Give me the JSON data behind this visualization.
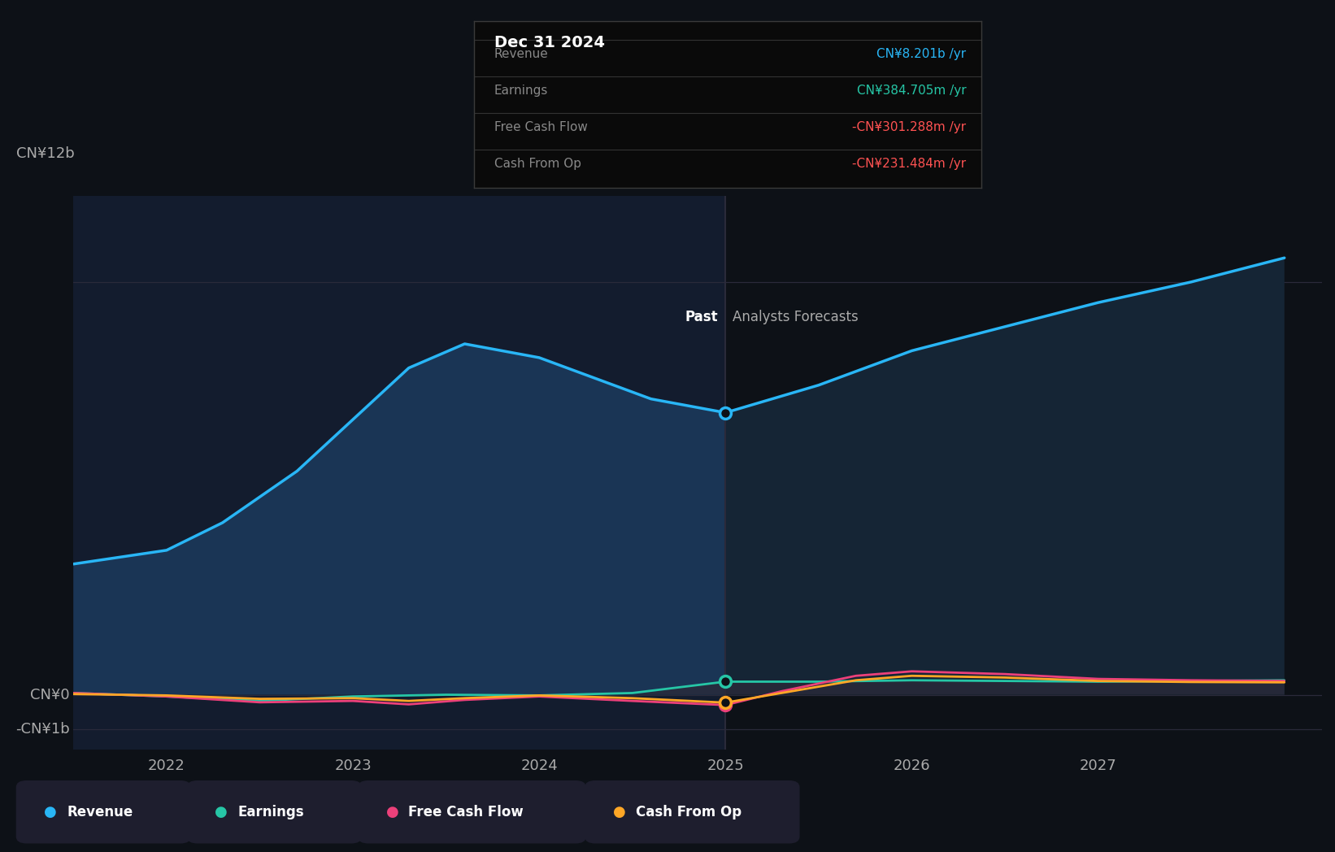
{
  "bg_color": "#0d1117",
  "past_bg_color": "#131c2e",
  "grid_color": "#252535",
  "text_color": "#aaaaaa",
  "title_color": "#ffffff",
  "divider_x": 2025.0,
  "x_min": 2021.5,
  "x_max": 2028.2,
  "y_min": -1600000000.0,
  "y_max": 14500000000.0,
  "ytick_positions": [
    -1000000000.0,
    0,
    12000000000.0
  ],
  "ytick_labels": [
    "-CN¥1b",
    "CN¥0",
    "CN¥12b"
  ],
  "xtick_positions": [
    2022,
    2023,
    2024,
    2025,
    2026,
    2027
  ],
  "revenue_color": "#29b6f6",
  "earnings_color": "#26c6a6",
  "fcf_color": "#ec407a",
  "cashop_color": "#ffa726",
  "revenue_x": [
    2021.5,
    2022.0,
    2022.3,
    2022.7,
    2023.0,
    2023.3,
    2023.6,
    2024.0,
    2024.3,
    2024.6,
    2025.0,
    2025.5,
    2026.0,
    2026.5,
    2027.0,
    2027.5,
    2028.0
  ],
  "revenue_y": [
    3800000000.0,
    4200000000.0,
    5000000000.0,
    6500000000.0,
    8000000000.0,
    9500000000.0,
    10200000000.0,
    9800000000.0,
    9200000000.0,
    8600000000.0,
    8200000000.0,
    9000000000.0,
    10000000000.0,
    10700000000.0,
    11400000000.0,
    12000000000.0,
    12700000000.0
  ],
  "earnings_x": [
    2021.5,
    2022.0,
    2022.5,
    2023.0,
    2023.5,
    2024.0,
    2024.5,
    2025.0,
    2025.5,
    2026.0,
    2026.5,
    2027.0,
    2027.5,
    2028.0
  ],
  "earnings_y": [
    50000000.0,
    -50000000.0,
    -180000000.0,
    -50000000.0,
    0.0,
    -20000000.0,
    50000000.0,
    380000000.0,
    380000000.0,
    420000000.0,
    400000000.0,
    380000000.0,
    400000000.0,
    420000000.0
  ],
  "fcf_x": [
    2021.5,
    2022.0,
    2022.5,
    2023.0,
    2023.3,
    2023.6,
    2024.0,
    2024.5,
    2025.0,
    2025.3,
    2025.7,
    2026.0,
    2026.5,
    2027.0,
    2027.5,
    2028.0
  ],
  "fcf_y": [
    50000000.0,
    -50000000.0,
    -220000000.0,
    -180000000.0,
    -280000000.0,
    -150000000.0,
    -50000000.0,
    -180000000.0,
    -300000000.0,
    100000000.0,
    550000000.0,
    680000000.0,
    600000000.0,
    460000000.0,
    420000000.0,
    400000000.0
  ],
  "cashop_x": [
    2021.5,
    2022.0,
    2022.5,
    2023.0,
    2023.3,
    2023.6,
    2024.0,
    2024.5,
    2025.0,
    2025.3,
    2025.7,
    2026.0,
    2026.5,
    2027.0,
    2027.5,
    2028.0
  ],
  "cashop_y": [
    20000000.0,
    -20000000.0,
    -120000000.0,
    -100000000.0,
    -180000000.0,
    -100000000.0,
    -20000000.0,
    -100000000.0,
    -230000000.0,
    50000000.0,
    420000000.0,
    550000000.0,
    500000000.0,
    400000000.0,
    370000000.0,
    360000000.0
  ],
  "tooltip_rows": [
    {
      "label": "Revenue",
      "value": "CN¥8.201b /yr",
      "color": "#29b6f6"
    },
    {
      "label": "Earnings",
      "value": "CN¥384.705m /yr",
      "color": "#26c6a6"
    },
    {
      "label": "Free Cash Flow",
      "value": "-CN¥301.288m /yr",
      "color": "#ff5252"
    },
    {
      "label": "Cash From Op",
      "value": "-CN¥231.484m /yr",
      "color": "#ff5252"
    }
  ],
  "legend_items": [
    {
      "label": "Revenue",
      "color": "#29b6f6"
    },
    {
      "label": "Earnings",
      "color": "#26c6a6"
    },
    {
      "label": "Free Cash Flow",
      "color": "#ec407a"
    },
    {
      "label": "Cash From Op",
      "color": "#ffa726"
    }
  ],
  "past_label": "Past",
  "forecast_label": "Analysts Forecasts"
}
